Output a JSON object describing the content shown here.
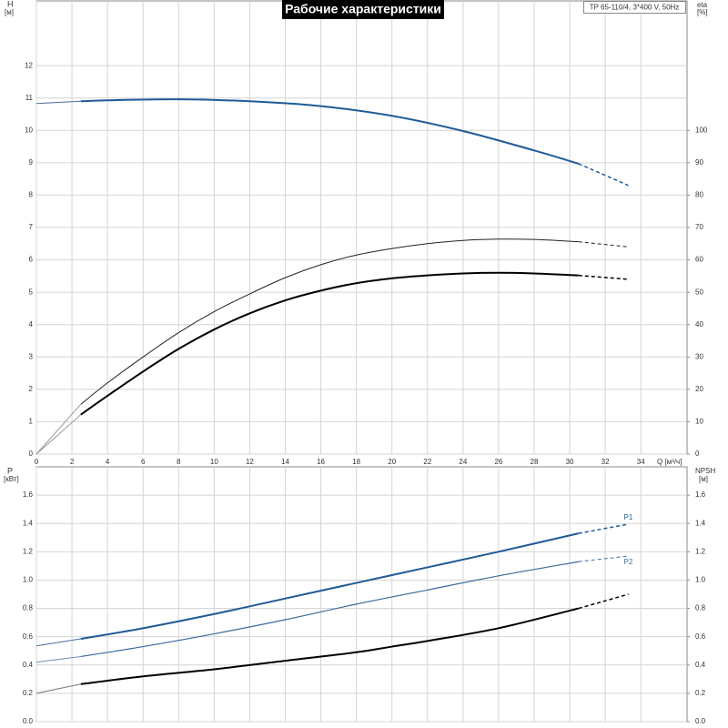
{
  "chart_data": [
    {
      "type": "line",
      "title": "Рабочие характеристики",
      "annotation": "TP 65-110/4, 3*400 V, 50Hz",
      "ylabel": "H",
      "yunit": "[м]",
      "y2label": "eta",
      "y2unit": "[%]",
      "xlabel": "Q [м³/ч]",
      "xlim": [
        0,
        36.6
      ],
      "xticks": [
        0,
        2,
        4,
        6,
        8,
        10,
        12,
        14,
        16,
        18,
        20,
        22,
        24,
        26,
        28,
        30,
        32,
        34
      ],
      "ylim": [
        0,
        14
      ],
      "yticks": [
        0,
        1,
        2,
        3,
        4,
        5,
        6,
        7,
        8,
        9,
        10,
        11,
        12
      ],
      "y2lim": [
        0,
        140
      ],
      "y2ticks": [
        0,
        10,
        20,
        30,
        40,
        50,
        60,
        70,
        80,
        90,
        100
      ],
      "grid": true,
      "series": [
        {
          "color": "#4a6f96",
          "width": 1,
          "line_style": "solid",
          "axis": "y",
          "x": [
            0,
            2.5
          ],
          "values": [
            10.83,
            10.9
          ]
        },
        {
          "color": "#1f5a96",
          "width": 2,
          "line_style": "solid",
          "axis": "y",
          "x": [
            2.5,
            4,
            8,
            12,
            16,
            20,
            24,
            28,
            30.5
          ],
          "values": [
            10.9,
            10.93,
            10.96,
            10.9,
            10.75,
            10.45,
            9.98,
            9.38,
            8.97
          ]
        },
        {
          "color": "#1f5a96",
          "width": 1.5,
          "line_style": "dashed",
          "axis": "y",
          "x": [
            30.5,
            33.3
          ],
          "values": [
            8.97,
            8.3
          ]
        },
        {
          "color": "#999999",
          "width": 1,
          "line_style": "solid",
          "axis": "y2",
          "x": [
            0,
            2.5
          ],
          "values": [
            0,
            15.4
          ]
        },
        {
          "color": "#222222",
          "width": 1,
          "line_style": "solid",
          "axis": "y2",
          "x": [
            2.5,
            4,
            6,
            8,
            10,
            12,
            14,
            16,
            18,
            20,
            22,
            24,
            26,
            28,
            30.5
          ],
          "values": [
            15.4,
            22,
            30,
            37.5,
            44,
            49.5,
            54.5,
            58.5,
            61.5,
            63.5,
            65,
            66,
            66.4,
            66.3,
            65.6
          ]
        },
        {
          "color": "#222222",
          "width": 1,
          "line_style": "dashed",
          "axis": "y2",
          "x": [
            30.5,
            33.3
          ],
          "values": [
            65.6,
            64
          ]
        },
        {
          "color": "#999999",
          "width": 1,
          "line_style": "solid",
          "axis": "y2",
          "x": [
            0,
            2.5
          ],
          "values": [
            0,
            12.2
          ]
        },
        {
          "color": "#000000",
          "width": 2,
          "line_style": "solid",
          "axis": "y2",
          "x": [
            2.5,
            4,
            6,
            8,
            10,
            12,
            14,
            16,
            18,
            20,
            22,
            24,
            26,
            28,
            30.5
          ],
          "values": [
            12.2,
            18,
            25.5,
            32.5,
            38.5,
            43.5,
            47.5,
            50.5,
            52.8,
            54.3,
            55.2,
            55.8,
            56,
            55.8,
            55.2
          ]
        },
        {
          "color": "#000000",
          "width": 1.5,
          "line_style": "dashed",
          "axis": "y2",
          "x": [
            30.5,
            33.3
          ],
          "values": [
            55.2,
            54
          ]
        }
      ]
    },
    {
      "type": "line",
      "ylabel": "P",
      "yunit": "[кВт]",
      "y2label": "NPSH",
      "y2unit": "[м]",
      "xlim": [
        0,
        36.6
      ],
      "xticks": [
        0,
        2,
        4,
        6,
        8,
        10,
        12,
        14,
        16,
        18,
        20,
        22,
        24,
        26,
        28,
        30,
        32,
        34
      ],
      "ylim": [
        0,
        1.8
      ],
      "yticks": [
        {
          "value": 0,
          "label": "0.0"
        },
        0.2,
        0.4,
        0.6,
        0.8,
        {
          "value": 1,
          "label": "1.0"
        },
        1.2,
        1.4,
        1.6
      ],
      "y2lim": [
        0,
        1.8
      ],
      "y2ticks": [
        {
          "value": 0,
          "label": "0.0"
        },
        0.2,
        0.4,
        0.6,
        0.8,
        {
          "value": 1,
          "label": "1.0"
        },
        1.2,
        1.4,
        1.6
      ],
      "grid": true,
      "series": [
        {
          "color": "#4a6f96",
          "width": 1,
          "line_style": "solid",
          "axis": "y",
          "x": [
            0,
            2.5
          ],
          "values": [
            0.535,
            0.585
          ]
        },
        {
          "color": "#1f5a96",
          "width": 2,
          "line_style": "solid",
          "axis": "y",
          "x": [
            2.5,
            6,
            10,
            14,
            18,
            22,
            26,
            30.5
          ],
          "values": [
            0.585,
            0.66,
            0.76,
            0.87,
            0.98,
            1.09,
            1.2,
            1.33
          ]
        },
        {
          "name": "P1",
          "color": "#1f5a96",
          "width": 1.5,
          "line_style": "dashed",
          "axis": "y",
          "x": [
            30.5,
            33.3
          ],
          "values": [
            1.33,
            1.395
          ]
        },
        {
          "color": "#6a8fb6",
          "width": 1,
          "line_style": "solid",
          "axis": "y",
          "x": [
            0,
            2.5
          ],
          "values": [
            0.42,
            0.46
          ]
        },
        {
          "color": "#3a6a9e",
          "width": 1.2,
          "line_style": "solid",
          "axis": "y",
          "x": [
            2.5,
            6,
            10,
            14,
            18,
            22,
            26,
            30.5
          ],
          "values": [
            0.46,
            0.53,
            0.62,
            0.72,
            0.83,
            0.93,
            1.03,
            1.13
          ]
        },
        {
          "name": "P2",
          "color": "#3a6a9e",
          "width": 1,
          "line_style": "dashed",
          "axis": "y",
          "x": [
            30.5,
            33.3
          ],
          "values": [
            1.13,
            1.17
          ]
        },
        {
          "color": "#777777",
          "width": 1,
          "line_style": "solid",
          "axis": "y2",
          "x": [
            0,
            2.5
          ],
          "values": [
            0.2,
            0.265
          ]
        },
        {
          "color": "#000000",
          "width": 2,
          "line_style": "solid",
          "axis": "y2",
          "x": [
            2.5,
            6,
            10,
            14,
            18,
            20,
            22,
            26,
            30.5
          ],
          "values": [
            0.265,
            0.32,
            0.37,
            0.43,
            0.49,
            0.53,
            0.57,
            0.66,
            0.8
          ]
        },
        {
          "color": "#000000",
          "width": 1.5,
          "line_style": "dashed",
          "axis": "y2",
          "x": [
            30.5,
            33.3
          ],
          "values": [
            0.8,
            0.9
          ]
        }
      ]
    }
  ]
}
